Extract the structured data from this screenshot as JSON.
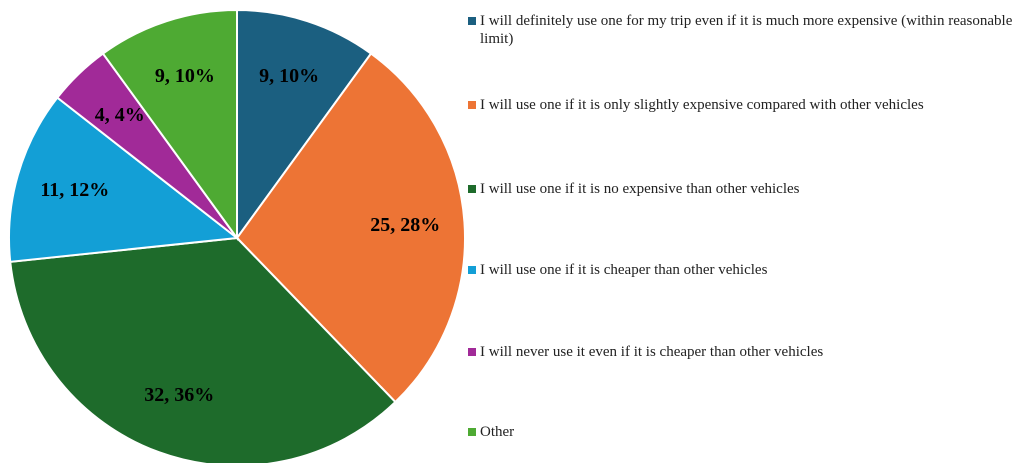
{
  "chart_data": {
    "type": "pie",
    "categories": [
      "I will definitely use one for my trip even if it is much more expensive (within reasonable limit)",
      "I will use one if it is only slightly expensive compared with other vehicles",
      "I will use one if it is no expensive than other vehicles",
      "I will use one if it is cheaper than other vehicles",
      "I will never use it even if it is cheaper than other vehicles",
      "Other"
    ],
    "values": [
      9,
      25,
      32,
      11,
      4,
      9
    ],
    "value_labels": [
      "9, 10%",
      "25, 28%",
      "32, 36%",
      "11, 12%",
      "4, 4%",
      "9, 10%"
    ],
    "colors": [
      "#1b5f80",
      "#ed7435",
      "#1e6b2b",
      "#139fd6",
      "#a12a98",
      "#4eaa33"
    ],
    "legend": "right"
  }
}
